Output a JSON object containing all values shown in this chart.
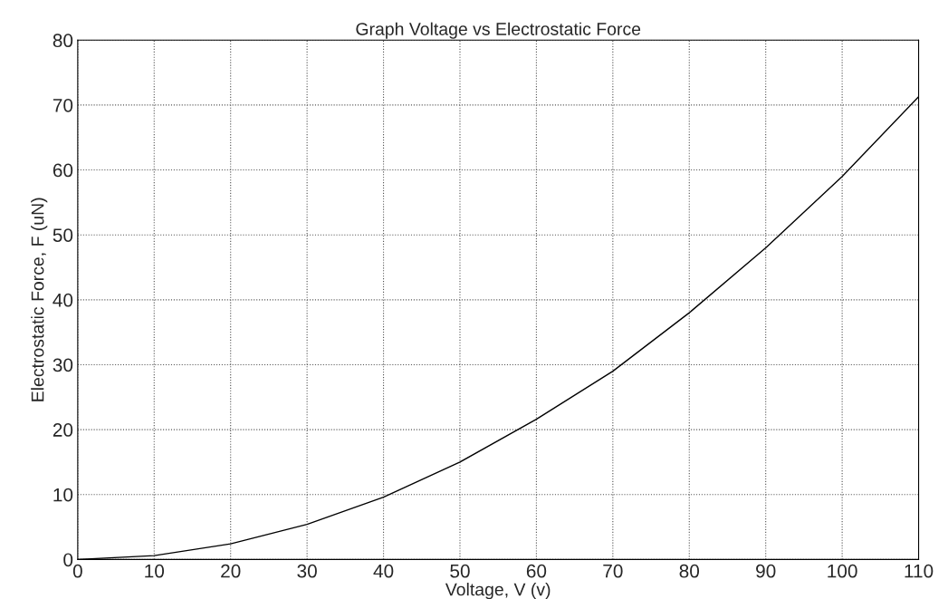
{
  "chart_data": {
    "type": "line",
    "title": "Graph Voltage vs Electrostatic Force",
    "xlabel": "Voltage, V (v)",
    "ylabel": "Electrostatic Force, F (uN)",
    "x": [
      0,
      10,
      20,
      30,
      40,
      50,
      60,
      70,
      80,
      90,
      100,
      110
    ],
    "series": [
      {
        "color": "#000000",
        "values": [
          0,
          0.6,
          2.4,
          5.4,
          9.6,
          15,
          21.6,
          29,
          38,
          48,
          59,
          71.3
        ]
      }
    ],
    "xlim": [
      0,
      110
    ],
    "ylim": [
      0,
      80
    ],
    "xticks": [
      0,
      10,
      20,
      30,
      40,
      50,
      60,
      70,
      80,
      90,
      100,
      110
    ],
    "yticks": [
      0,
      10,
      20,
      30,
      40,
      50,
      60,
      70,
      80
    ],
    "grid": true,
    "line_style": "solid",
    "marker": "none"
  }
}
